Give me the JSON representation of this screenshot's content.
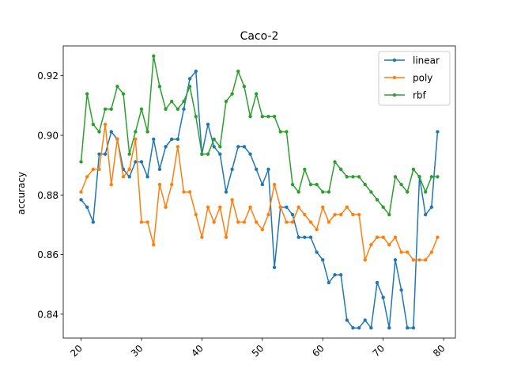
{
  "chart_data": {
    "type": "line",
    "title": "Caco-2",
    "xlabel": "",
    "ylabel": "accuracy",
    "xlim": [
      17.05,
      81.95
    ],
    "ylim": [
      0.832,
      0.93
    ],
    "xticks": [
      20,
      30,
      40,
      50,
      60,
      70,
      80
    ],
    "yticks": [
      0.84,
      0.86,
      0.88,
      0.9,
      0.92
    ],
    "ytick_labels": [
      "0.84",
      "0.86",
      "0.88",
      "0.90",
      "0.92"
    ],
    "grid": false,
    "legend_position": "top-right",
    "x": [
      20,
      21,
      22,
      23,
      24,
      25,
      26,
      27,
      28,
      29,
      30,
      31,
      32,
      33,
      34,
      35,
      36,
      37,
      38,
      39,
      40,
      41,
      42,
      43,
      44,
      45,
      46,
      47,
      48,
      49,
      50,
      51,
      52,
      53,
      54,
      55,
      56,
      57,
      58,
      59,
      60,
      61,
      62,
      63,
      64,
      65,
      66,
      67,
      68,
      69,
      70,
      71,
      72,
      73,
      74,
      75,
      76,
      77,
      78,
      79
    ],
    "series": [
      {
        "name": "linear",
        "color": "#1f77b4",
        "values": [
          0.8784,
          0.8759,
          0.8709,
          0.8937,
          0.8937,
          0.9012,
          0.8987,
          0.8886,
          0.8861,
          0.8911,
          0.8911,
          0.8861,
          0.8987,
          0.8886,
          0.8962,
          0.8987,
          0.8987,
          0.9088,
          0.919,
          0.9215,
          0.8937,
          0.9037,
          0.8962,
          0.8937,
          0.881,
          0.8886,
          0.8962,
          0.8962,
          0.8937,
          0.8886,
          0.8835,
          0.8886,
          0.8557,
          0.8759,
          0.8759,
          0.8734,
          0.8658,
          0.8658,
          0.8658,
          0.8608,
          0.8582,
          0.8506,
          0.8532,
          0.8532,
          0.838,
          0.8354,
          0.8354,
          0.838,
          0.8354,
          0.8506,
          0.8456,
          0.8354,
          0.8582,
          0.8481,
          0.8354,
          0.8354,
          0.8861,
          0.8734,
          0.8759,
          0.9012
        ]
      },
      {
        "name": "poly",
        "color": "#ff7f0e",
        "values": [
          0.881,
          0.8861,
          0.8886,
          0.8886,
          0.9037,
          0.8835,
          0.8987,
          0.8861,
          0.8886,
          0.8987,
          0.8709,
          0.8709,
          0.8633,
          0.8835,
          0.8759,
          0.8835,
          0.8962,
          0.881,
          0.881,
          0.8734,
          0.8658,
          0.8759,
          0.8709,
          0.8759,
          0.8658,
          0.8784,
          0.8709,
          0.8709,
          0.8759,
          0.8709,
          0.8684,
          0.8734,
          0.8835,
          0.8759,
          0.8709,
          0.8709,
          0.8759,
          0.8734,
          0.8709,
          0.8684,
          0.8759,
          0.8709,
          0.8734,
          0.8734,
          0.8759,
          0.8734,
          0.8734,
          0.8582,
          0.8633,
          0.8658,
          0.8658,
          0.8633,
          0.8658,
          0.8608,
          0.8608,
          0.8582,
          0.8582,
          0.8582,
          0.8608,
          0.8658
        ]
      },
      {
        "name": "rbf",
        "color": "#2ca02c",
        "values": [
          0.8911,
          0.9139,
          0.9037,
          0.9012,
          0.9088,
          0.9088,
          0.9164,
          0.9139,
          0.8937,
          0.9012,
          0.9088,
          0.9012,
          0.9266,
          0.9164,
          0.9088,
          0.9114,
          0.9088,
          0.9114,
          0.9164,
          0.9063,
          0.8937,
          0.8937,
          0.8987,
          0.8962,
          0.9114,
          0.9139,
          0.9215,
          0.9164,
          0.9063,
          0.9139,
          0.9063,
          0.9063,
          0.9063,
          0.9012,
          0.9012,
          0.8835,
          0.881,
          0.8886,
          0.8835,
          0.8835,
          0.881,
          0.881,
          0.8911,
          0.8886,
          0.8861,
          0.8861,
          0.8861,
          0.8835,
          0.881,
          0.8784,
          0.8759,
          0.8734,
          0.8861,
          0.8835,
          0.881,
          0.8886,
          0.8861,
          0.881,
          0.8861,
          0.8861
        ]
      }
    ]
  }
}
